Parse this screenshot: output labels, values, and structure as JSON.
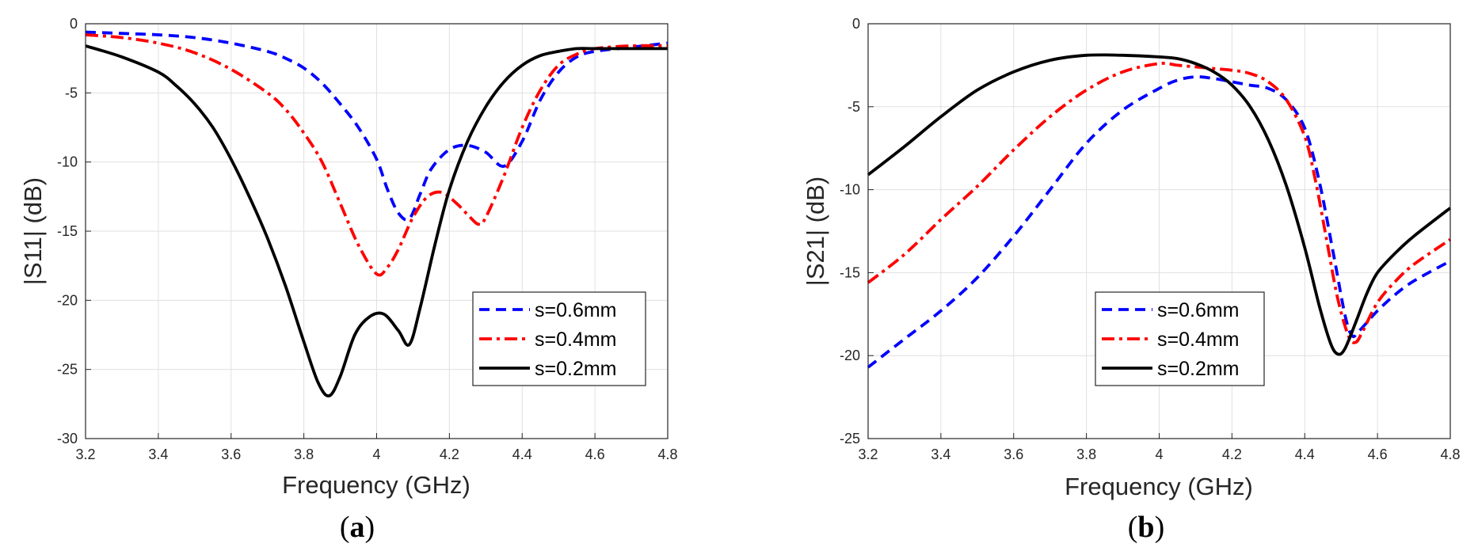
{
  "chart_data": [
    {
      "type": "line",
      "caption_letter": "a",
      "xlabel": "Frequency (GHz)",
      "ylabel": "|S11| (dB)",
      "xlim": [
        3.2,
        4.8
      ],
      "ylim": [
        -30,
        0
      ],
      "xticks": [
        3.2,
        3.4,
        3.6,
        3.8,
        4,
        4.2,
        4.4,
        4.6,
        4.8
      ],
      "yticks": [
        0,
        -5,
        -10,
        -15,
        -20,
        -25,
        -30
      ],
      "grid": true,
      "legend_position": "lower-right",
      "series": [
        {
          "name": "s=0.6mm",
          "color": "#0000ff",
          "style": "dashed",
          "x": [
            3.2,
            3.3,
            3.4,
            3.5,
            3.6,
            3.7,
            3.75,
            3.8,
            3.85,
            3.9,
            3.95,
            4.0,
            4.03,
            4.06,
            4.09,
            4.12,
            4.15,
            4.2,
            4.25,
            4.3,
            4.35,
            4.4,
            4.45,
            4.5,
            4.55,
            4.6,
            4.7,
            4.8
          ],
          "y": [
            -0.6,
            -0.7,
            -0.8,
            -1.0,
            -1.4,
            -2.0,
            -2.5,
            -3.2,
            -4.3,
            -5.8,
            -7.5,
            -9.8,
            -12.0,
            -13.7,
            -14.1,
            -12.3,
            -10.5,
            -9.1,
            -8.8,
            -9.3,
            -10.3,
            -8.5,
            -5.5,
            -3.5,
            -2.4,
            -2.0,
            -1.7,
            -1.4
          ]
        },
        {
          "name": "s=0.4mm",
          "color": "#ff0000",
          "style": "dashdot",
          "x": [
            3.2,
            3.3,
            3.4,
            3.5,
            3.6,
            3.7,
            3.75,
            3.8,
            3.85,
            3.9,
            3.95,
            4.0,
            4.03,
            4.06,
            4.1,
            4.14,
            4.18,
            4.22,
            4.25,
            4.28,
            4.3,
            4.35,
            4.4,
            4.45,
            4.5,
            4.55,
            4.6,
            4.7,
            4.8
          ],
          "y": [
            -0.8,
            -1.0,
            -1.4,
            -2.1,
            -3.3,
            -5.0,
            -6.2,
            -7.9,
            -10.0,
            -13.0,
            -16.0,
            -18.1,
            -17.6,
            -16.3,
            -14.0,
            -12.5,
            -12.2,
            -13.0,
            -13.8,
            -14.5,
            -14.0,
            -11.0,
            -7.5,
            -4.8,
            -3.0,
            -2.2,
            -1.8,
            -1.6,
            -1.6
          ]
        },
        {
          "name": "s=0.2mm",
          "color": "#000000",
          "style": "solid",
          "x": [
            3.2,
            3.3,
            3.4,
            3.45,
            3.5,
            3.55,
            3.6,
            3.65,
            3.7,
            3.75,
            3.8,
            3.84,
            3.87,
            3.9,
            3.94,
            3.98,
            4.02,
            4.06,
            4.09,
            4.12,
            4.16,
            4.2,
            4.25,
            4.3,
            4.35,
            4.4,
            4.45,
            4.5,
            4.55,
            4.6,
            4.7,
            4.8
          ],
          "y": [
            -1.6,
            -2.4,
            -3.5,
            -4.5,
            -5.8,
            -7.5,
            -9.8,
            -12.5,
            -15.5,
            -19.0,
            -23.0,
            -26.0,
            -26.9,
            -25.5,
            -22.5,
            -21.2,
            -21.0,
            -22.2,
            -23.2,
            -20.5,
            -16.0,
            -12.0,
            -8.5,
            -6.0,
            -4.2,
            -3.0,
            -2.3,
            -2.0,
            -1.8,
            -1.8,
            -1.8,
            -1.8
          ]
        }
      ]
    },
    {
      "type": "line",
      "caption_letter": "b",
      "xlabel": "Frequency (GHz)",
      "ylabel": "|S21| (dB)",
      "xlim": [
        3.2,
        4.8
      ],
      "ylim": [
        -25,
        0
      ],
      "xticks": [
        3.2,
        3.4,
        3.6,
        3.8,
        4,
        4.2,
        4.4,
        4.6,
        4.8
      ],
      "yticks": [
        0,
        -5,
        -10,
        -15,
        -20,
        -25
      ],
      "grid": true,
      "legend_position": "lower-center",
      "series": [
        {
          "name": "s=0.6mm",
          "color": "#0000ff",
          "style": "dashed",
          "x": [
            3.2,
            3.3,
            3.4,
            3.5,
            3.6,
            3.7,
            3.8,
            3.9,
            4.0,
            4.05,
            4.1,
            4.15,
            4.2,
            4.25,
            4.3,
            4.35,
            4.4,
            4.44,
            4.48,
            4.51,
            4.53,
            4.55,
            4.6,
            4.65,
            4.7,
            4.8
          ],
          "y": [
            -20.7,
            -19.0,
            -17.3,
            -15.3,
            -12.8,
            -10.0,
            -7.2,
            -5.2,
            -3.9,
            -3.4,
            -3.2,
            -3.3,
            -3.5,
            -3.7,
            -3.9,
            -4.6,
            -6.3,
            -9.5,
            -14.0,
            -17.5,
            -18.8,
            -18.5,
            -17.3,
            -16.3,
            -15.5,
            -14.3
          ]
        },
        {
          "name": "s=0.4mm",
          "color": "#ff0000",
          "style": "dashdot",
          "x": [
            3.2,
            3.3,
            3.4,
            3.5,
            3.6,
            3.7,
            3.8,
            3.9,
            4.0,
            4.05,
            4.1,
            4.15,
            4.2,
            4.25,
            4.3,
            4.35,
            4.4,
            4.43,
            4.46,
            4.49,
            4.52,
            4.54,
            4.56,
            4.6,
            4.65,
            4.7,
            4.8
          ],
          "y": [
            -15.6,
            -13.9,
            -11.8,
            -9.8,
            -7.6,
            -5.6,
            -4.0,
            -2.9,
            -2.4,
            -2.5,
            -2.6,
            -2.7,
            -2.8,
            -3.0,
            -3.5,
            -4.6,
            -6.8,
            -9.5,
            -13.0,
            -16.5,
            -18.8,
            -19.2,
            -18.5,
            -16.8,
            -15.5,
            -14.5,
            -13.0
          ]
        },
        {
          "name": "s=0.2mm",
          "color": "#000000",
          "style": "solid",
          "x": [
            3.2,
            3.3,
            3.4,
            3.5,
            3.6,
            3.7,
            3.8,
            3.9,
            4.0,
            4.05,
            4.1,
            4.15,
            4.2,
            4.25,
            4.3,
            4.35,
            4.4,
            4.44,
            4.47,
            4.49,
            4.51,
            4.54,
            4.57,
            4.6,
            4.65,
            4.7,
            4.8
          ],
          "y": [
            -9.1,
            -7.4,
            -5.6,
            -4.0,
            -2.9,
            -2.2,
            -1.9,
            -1.9,
            -2.0,
            -2.1,
            -2.4,
            -2.9,
            -3.7,
            -5.0,
            -7.0,
            -9.8,
            -13.5,
            -17.0,
            -19.2,
            -19.9,
            -19.6,
            -18.0,
            -16.3,
            -15.0,
            -13.8,
            -12.8,
            -11.1
          ]
        }
      ]
    }
  ]
}
